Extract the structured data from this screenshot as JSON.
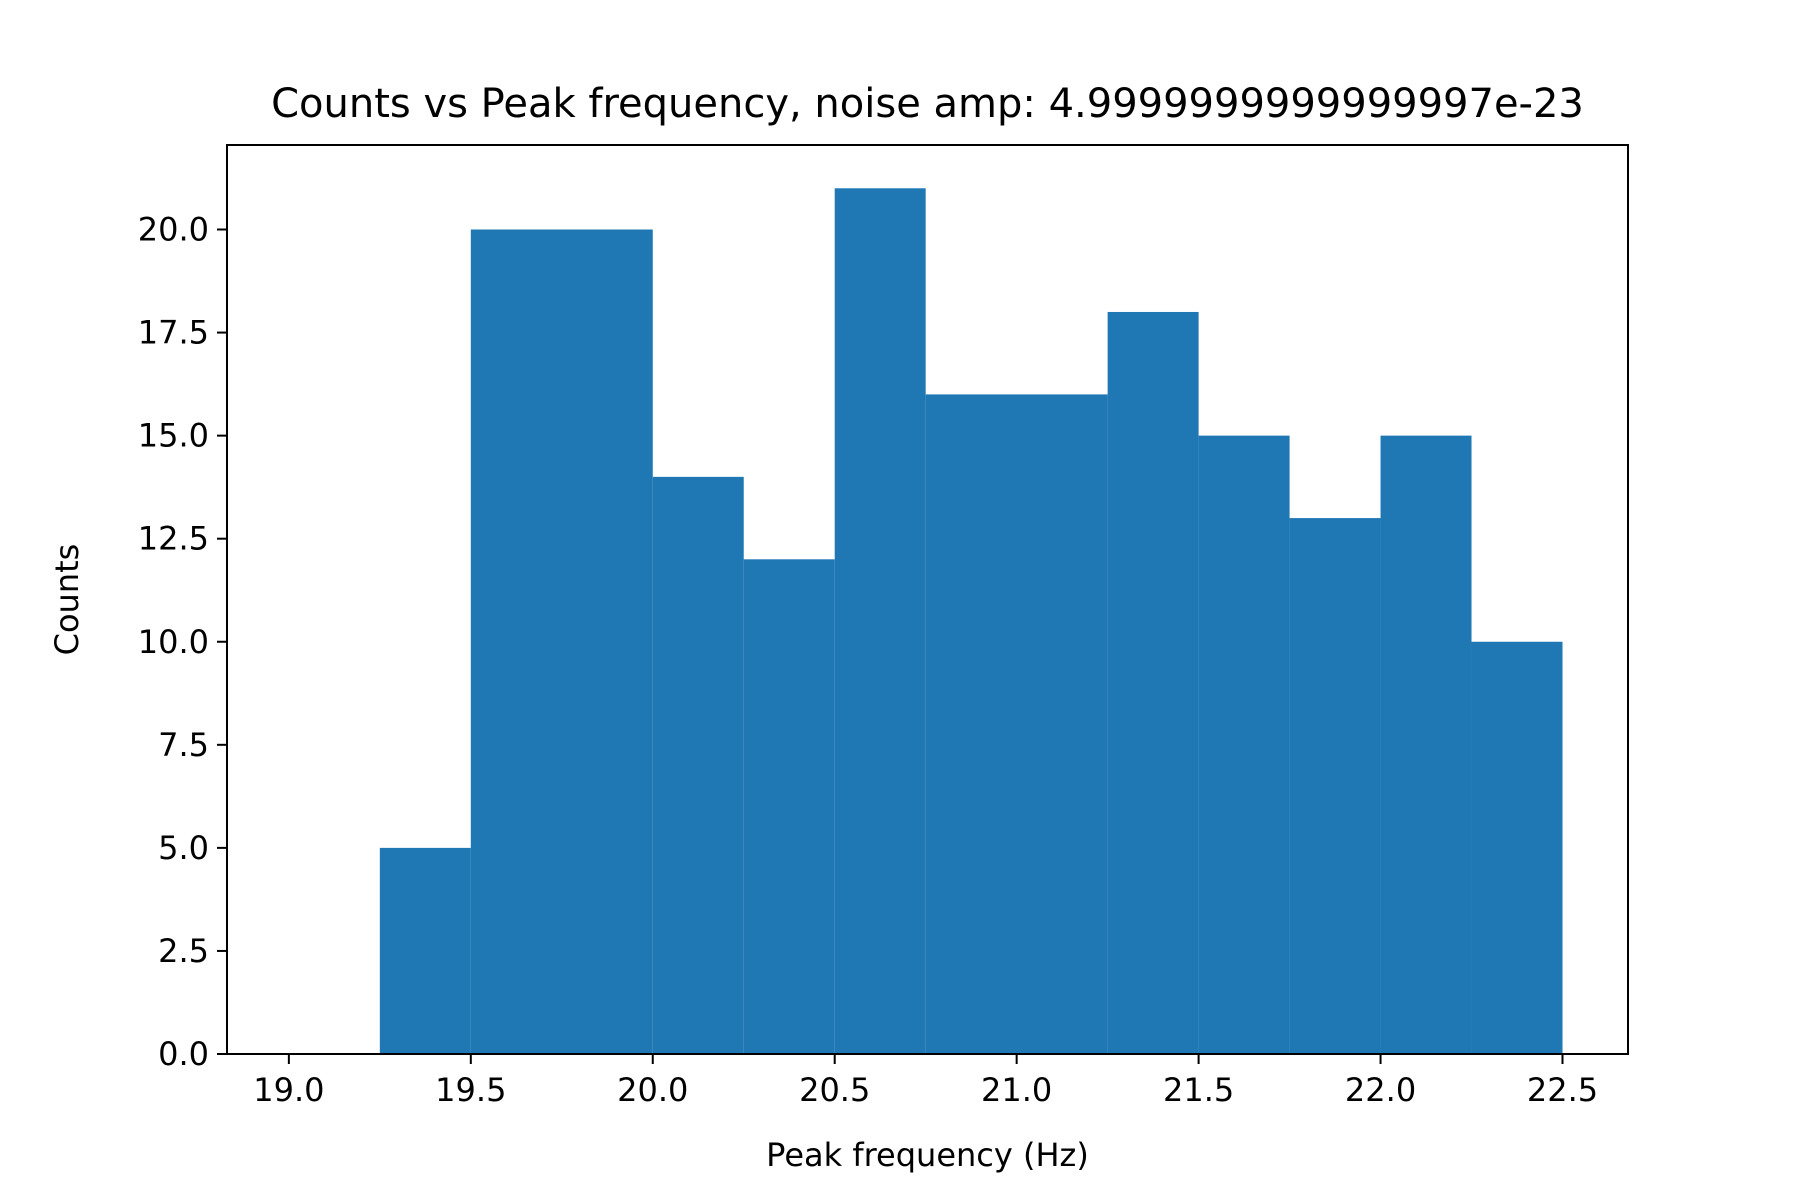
{
  "chart_data": {
    "type": "bar",
    "title": "Counts vs Peak frequency, noise amp: 4.9999999999999997e-23",
    "xlabel": "Peak frequency (Hz)",
    "ylabel": "Counts",
    "xlim": [
      18.83,
      22.68
    ],
    "ylim": [
      0,
      22.05
    ],
    "grid": false,
    "bar_color": "#1f77b4",
    "bins": [
      {
        "x0": 19.25,
        "x1": 19.5,
        "count": 5
      },
      {
        "x0": 19.5,
        "x1": 20.0,
        "count": 20
      },
      {
        "x0": 20.0,
        "x1": 20.25,
        "count": 14
      },
      {
        "x0": 20.25,
        "x1": 20.5,
        "count": 12
      },
      {
        "x0": 20.5,
        "x1": 20.75,
        "count": 21
      },
      {
        "x0": 20.75,
        "x1": 21.25,
        "count": 16
      },
      {
        "x0": 21.25,
        "x1": 21.5,
        "count": 18
      },
      {
        "x0": 21.5,
        "x1": 21.75,
        "count": 15
      },
      {
        "x0": 21.75,
        "x1": 22.0,
        "count": 13
      },
      {
        "x0": 22.0,
        "x1": 22.25,
        "count": 15
      },
      {
        "x0": 22.25,
        "x1": 22.5,
        "count": 10
      }
    ],
    "x_ticks": [
      {
        "value": 19.0,
        "label": "19.0"
      },
      {
        "value": 19.5,
        "label": "19.5"
      },
      {
        "value": 20.0,
        "label": "20.0"
      },
      {
        "value": 20.5,
        "label": "20.5"
      },
      {
        "value": 21.0,
        "label": "21.0"
      },
      {
        "value": 21.5,
        "label": "21.5"
      },
      {
        "value": 22.0,
        "label": "22.0"
      },
      {
        "value": 22.5,
        "label": "22.5"
      }
    ],
    "y_ticks": [
      {
        "value": 0.0,
        "label": "0.0"
      },
      {
        "value": 2.5,
        "label": "2.5"
      },
      {
        "value": 5.0,
        "label": "5.0"
      },
      {
        "value": 7.5,
        "label": "7.5"
      },
      {
        "value": 10.0,
        "label": "10.0"
      },
      {
        "value": 12.5,
        "label": "12.5"
      },
      {
        "value": 15.0,
        "label": "15.0"
      },
      {
        "value": 17.5,
        "label": "17.5"
      },
      {
        "value": 20.0,
        "label": "20.0"
      }
    ]
  }
}
